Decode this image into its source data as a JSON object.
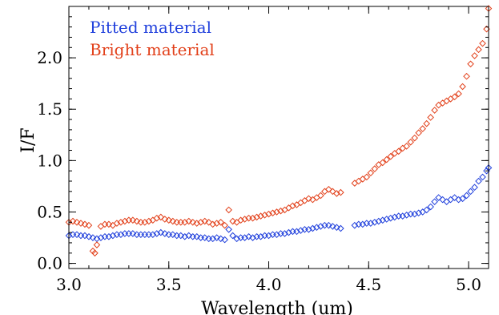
{
  "chart_data": {
    "type": "scatter",
    "title": "",
    "xlabel": "Wavelength (um)",
    "ylabel": "I/F",
    "xlim": [
      3.0,
      5.1
    ],
    "ylim": [
      -0.05,
      2.5
    ],
    "x_ticks": [
      "3.0",
      "3.5",
      "4.0",
      "4.5",
      "5.0"
    ],
    "y_ticks": [
      "0.0",
      "0.5",
      "1.0",
      "1.5",
      "2.0"
    ],
    "grid": false,
    "legend_position": "top-left",
    "series": [
      {
        "name": "Pitted material",
        "color": "#1f3fdc",
        "marker": "diamond",
        "points": [
          [
            3.0,
            0.27
          ],
          [
            3.02,
            0.28
          ],
          [
            3.04,
            0.28
          ],
          [
            3.06,
            0.27
          ],
          [
            3.08,
            0.27
          ],
          [
            3.1,
            0.26
          ],
          [
            3.12,
            0.25
          ],
          [
            3.14,
            0.24
          ],
          [
            3.16,
            0.25
          ],
          [
            3.18,
            0.26
          ],
          [
            3.2,
            0.26
          ],
          [
            3.22,
            0.27
          ],
          [
            3.24,
            0.28
          ],
          [
            3.26,
            0.28
          ],
          [
            3.28,
            0.29
          ],
          [
            3.3,
            0.29
          ],
          [
            3.32,
            0.29
          ],
          [
            3.34,
            0.28
          ],
          [
            3.36,
            0.28
          ],
          [
            3.38,
            0.28
          ],
          [
            3.4,
            0.28
          ],
          [
            3.42,
            0.28
          ],
          [
            3.44,
            0.29
          ],
          [
            3.46,
            0.3
          ],
          [
            3.48,
            0.29
          ],
          [
            3.5,
            0.28
          ],
          [
            3.52,
            0.28
          ],
          [
            3.54,
            0.27
          ],
          [
            3.56,
            0.27
          ],
          [
            3.58,
            0.26
          ],
          [
            3.6,
            0.27
          ],
          [
            3.62,
            0.26
          ],
          [
            3.64,
            0.26
          ],
          [
            3.66,
            0.25
          ],
          [
            3.68,
            0.25
          ],
          [
            3.7,
            0.24
          ],
          [
            3.72,
            0.24
          ],
          [
            3.74,
            0.25
          ],
          [
            3.76,
            0.24
          ],
          [
            3.78,
            0.23
          ],
          [
            3.8,
            0.33
          ],
          [
            3.82,
            0.27
          ],
          [
            3.84,
            0.24
          ],
          [
            3.86,
            0.25
          ],
          [
            3.88,
            0.25
          ],
          [
            3.9,
            0.26
          ],
          [
            3.92,
            0.25
          ],
          [
            3.94,
            0.26
          ],
          [
            3.96,
            0.26
          ],
          [
            3.98,
            0.27
          ],
          [
            4.0,
            0.27
          ],
          [
            4.02,
            0.28
          ],
          [
            4.04,
            0.28
          ],
          [
            4.06,
            0.29
          ],
          [
            4.08,
            0.29
          ],
          [
            4.1,
            0.3
          ],
          [
            4.12,
            0.31
          ],
          [
            4.14,
            0.31
          ],
          [
            4.16,
            0.32
          ],
          [
            4.18,
            0.33
          ],
          [
            4.2,
            0.33
          ],
          [
            4.22,
            0.34
          ],
          [
            4.24,
            0.35
          ],
          [
            4.26,
            0.36
          ],
          [
            4.28,
            0.37
          ],
          [
            4.3,
            0.37
          ],
          [
            4.32,
            0.36
          ],
          [
            4.34,
            0.35
          ],
          [
            4.36,
            0.34
          ],
          [
            4.43,
            0.37
          ],
          [
            4.45,
            0.38
          ],
          [
            4.47,
            0.38
          ],
          [
            4.49,
            0.39
          ],
          [
            4.51,
            0.39
          ],
          [
            4.53,
            0.4
          ],
          [
            4.55,
            0.41
          ],
          [
            4.57,
            0.42
          ],
          [
            4.59,
            0.43
          ],
          [
            4.61,
            0.44
          ],
          [
            4.63,
            0.45
          ],
          [
            4.65,
            0.46
          ],
          [
            4.67,
            0.46
          ],
          [
            4.69,
            0.47
          ],
          [
            4.71,
            0.48
          ],
          [
            4.73,
            0.48
          ],
          [
            4.75,
            0.49
          ],
          [
            4.77,
            0.5
          ],
          [
            4.79,
            0.52
          ],
          [
            4.81,
            0.55
          ],
          [
            4.83,
            0.6
          ],
          [
            4.85,
            0.64
          ],
          [
            4.87,
            0.62
          ],
          [
            4.89,
            0.6
          ],
          [
            4.91,
            0.62
          ],
          [
            4.93,
            0.64
          ],
          [
            4.95,
            0.62
          ],
          [
            4.97,
            0.63
          ],
          [
            4.99,
            0.66
          ],
          [
            5.01,
            0.7
          ],
          [
            5.03,
            0.74
          ],
          [
            5.05,
            0.8
          ],
          [
            5.07,
            0.84
          ],
          [
            5.09,
            0.9
          ],
          [
            5.1,
            0.93
          ]
        ]
      },
      {
        "name": "Bright material",
        "color": "#e2401a",
        "marker": "diamond",
        "points": [
          [
            3.0,
            0.4
          ],
          [
            3.02,
            0.41
          ],
          [
            3.04,
            0.4
          ],
          [
            3.06,
            0.39
          ],
          [
            3.08,
            0.38
          ],
          [
            3.1,
            0.37
          ],
          [
            3.12,
            0.12
          ],
          [
            3.13,
            0.1
          ],
          [
            3.14,
            0.18
          ],
          [
            3.16,
            0.36
          ],
          [
            3.18,
            0.38
          ],
          [
            3.2,
            0.38
          ],
          [
            3.22,
            0.37
          ],
          [
            3.24,
            0.39
          ],
          [
            3.26,
            0.4
          ],
          [
            3.28,
            0.41
          ],
          [
            3.3,
            0.42
          ],
          [
            3.32,
            0.42
          ],
          [
            3.34,
            0.41
          ],
          [
            3.36,
            0.4
          ],
          [
            3.38,
            0.4
          ],
          [
            3.4,
            0.41
          ],
          [
            3.42,
            0.42
          ],
          [
            3.44,
            0.44
          ],
          [
            3.46,
            0.45
          ],
          [
            3.48,
            0.43
          ],
          [
            3.5,
            0.42
          ],
          [
            3.52,
            0.41
          ],
          [
            3.54,
            0.4
          ],
          [
            3.56,
            0.4
          ],
          [
            3.58,
            0.4
          ],
          [
            3.6,
            0.41
          ],
          [
            3.62,
            0.4
          ],
          [
            3.64,
            0.39
          ],
          [
            3.66,
            0.4
          ],
          [
            3.68,
            0.41
          ],
          [
            3.7,
            0.4
          ],
          [
            3.72,
            0.38
          ],
          [
            3.74,
            0.39
          ],
          [
            3.76,
            0.4
          ],
          [
            3.78,
            0.37
          ],
          [
            3.8,
            0.52
          ],
          [
            3.82,
            0.41
          ],
          [
            3.84,
            0.4
          ],
          [
            3.86,
            0.42
          ],
          [
            3.88,
            0.43
          ],
          [
            3.9,
            0.44
          ],
          [
            3.92,
            0.44
          ],
          [
            3.94,
            0.45
          ],
          [
            3.96,
            0.46
          ],
          [
            3.98,
            0.47
          ],
          [
            4.0,
            0.48
          ],
          [
            4.02,
            0.49
          ],
          [
            4.04,
            0.5
          ],
          [
            4.06,
            0.51
          ],
          [
            4.08,
            0.52
          ],
          [
            4.1,
            0.54
          ],
          [
            4.12,
            0.56
          ],
          [
            4.14,
            0.57
          ],
          [
            4.16,
            0.59
          ],
          [
            4.18,
            0.61
          ],
          [
            4.2,
            0.63
          ],
          [
            4.22,
            0.62
          ],
          [
            4.24,
            0.64
          ],
          [
            4.26,
            0.66
          ],
          [
            4.28,
            0.7
          ],
          [
            4.3,
            0.72
          ],
          [
            4.32,
            0.7
          ],
          [
            4.34,
            0.68
          ],
          [
            4.36,
            0.69
          ],
          [
            4.43,
            0.78
          ],
          [
            4.45,
            0.8
          ],
          [
            4.47,
            0.82
          ],
          [
            4.49,
            0.84
          ],
          [
            4.51,
            0.88
          ],
          [
            4.53,
            0.92
          ],
          [
            4.55,
            0.96
          ],
          [
            4.57,
            0.98
          ],
          [
            4.59,
            1.01
          ],
          [
            4.61,
            1.04
          ],
          [
            4.63,
            1.07
          ],
          [
            4.65,
            1.09
          ],
          [
            4.67,
            1.12
          ],
          [
            4.69,
            1.14
          ],
          [
            4.71,
            1.18
          ],
          [
            4.73,
            1.22
          ],
          [
            4.75,
            1.27
          ],
          [
            4.77,
            1.31
          ],
          [
            4.79,
            1.36
          ],
          [
            4.81,
            1.42
          ],
          [
            4.83,
            1.49
          ],
          [
            4.85,
            1.54
          ],
          [
            4.87,
            1.56
          ],
          [
            4.89,
            1.58
          ],
          [
            4.91,
            1.6
          ],
          [
            4.93,
            1.62
          ],
          [
            4.95,
            1.65
          ],
          [
            4.97,
            1.72
          ],
          [
            4.99,
            1.82
          ],
          [
            5.01,
            1.94
          ],
          [
            5.03,
            2.02
          ],
          [
            5.05,
            2.08
          ],
          [
            5.07,
            2.14
          ],
          [
            5.09,
            2.28
          ],
          [
            5.1,
            2.48
          ]
        ]
      }
    ]
  }
}
